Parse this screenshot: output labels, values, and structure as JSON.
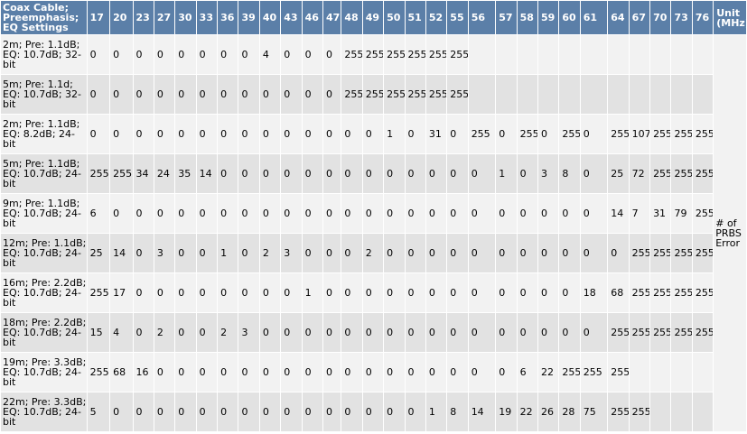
{
  "table": {
    "corner_header": "Coax Cable; Preemphasis; EQ Settings",
    "unit_header": "Unit (MHz)",
    "columns": [
      "17",
      "20",
      "23",
      "27",
      "30",
      "33",
      "36",
      "39",
      "40",
      "43",
      "46",
      "47",
      "48",
      "49",
      "50",
      "51",
      "52",
      "55",
      "56",
      "57",
      "58",
      "59",
      "60",
      "61",
      "64",
      "67",
      "70",
      "73",
      "76"
    ],
    "unit_label": "# of PRBS Error",
    "rows": [
      {
        "setting": "2m; Pre: 1.1dB; EQ: 10.7dB; 32-bit",
        "values": [
          "0",
          "0",
          "0",
          "0",
          "0",
          "0",
          "0",
          "0",
          "4",
          "0",
          "0",
          "0",
          "255",
          "255",
          "255",
          "255",
          "255",
          "255",
          "",
          "",
          "",
          "",
          "",
          "",
          "",
          "",
          "",
          "",
          ""
        ]
      },
      {
        "setting": "5m; Pre: 1.1d; EQ: 10.7dB; 32-bit",
        "values": [
          "0",
          "0",
          "0",
          "0",
          "0",
          "0",
          "0",
          "0",
          "0",
          "0",
          "0",
          "0",
          "255",
          "255",
          "255",
          "255",
          "255",
          "255",
          "",
          "",
          "",
          "",
          "",
          "",
          "",
          "",
          "",
          "",
          ""
        ]
      },
      {
        "setting": "2m; Pre: 1.1dB; EQ: 8.2dB; 24-bit",
        "values": [
          "0",
          "0",
          "0",
          "0",
          "0",
          "0",
          "0",
          "0",
          "0",
          "0",
          "0",
          "0",
          "0",
          "0",
          "1",
          "0",
          "31",
          "0",
          "255",
          "0",
          "255",
          "0",
          "255",
          "0",
          "255",
          "107",
          "255",
          "255",
          "255"
        ]
      },
      {
        "setting": "5m; Pre: 1.1dB; EQ: 10.7dB; 24-bit",
        "values": [
          "255",
          "255",
          "34",
          "24",
          "35",
          "14",
          "0",
          "0",
          "0",
          "0",
          "0",
          "0",
          "0",
          "0",
          "0",
          "0",
          "0",
          "0",
          "0",
          "1",
          "0",
          "3",
          "8",
          "0",
          "25",
          "72",
          "255",
          "255",
          "255"
        ]
      },
      {
        "setting": "9m; Pre: 1.1dB; EQ: 10.7dB; 24-bit",
        "values": [
          "6",
          "0",
          "0",
          "0",
          "0",
          "0",
          "0",
          "0",
          "0",
          "0",
          "0",
          "0",
          "0",
          "0",
          "0",
          "0",
          "0",
          "0",
          "0",
          "0",
          "0",
          "0",
          "0",
          "0",
          "14",
          "7",
          "31",
          "79",
          "255"
        ]
      },
      {
        "setting": "12m; Pre: 1.1dB; EQ: 10.7dB; 24-bit",
        "values": [
          "25",
          "14",
          "0",
          "3",
          "0",
          "0",
          "1",
          "0",
          "2",
          "3",
          "0",
          "0",
          "0",
          "2",
          "0",
          "0",
          "0",
          "0",
          "0",
          "0",
          "0",
          "0",
          "0",
          "0",
          "0",
          "255",
          "255",
          "255",
          "255"
        ]
      },
      {
        "setting": "16m; Pre: 2.2dB; EQ: 10.7dB; 24-bit",
        "values": [
          "255",
          "17",
          "0",
          "0",
          "0",
          "0",
          "0",
          "0",
          "0",
          "0",
          "1",
          "0",
          "0",
          "0",
          "0",
          "0",
          "0",
          "0",
          "0",
          "0",
          "0",
          "0",
          "0",
          "18",
          "68",
          "255",
          "255",
          "255",
          "255"
        ]
      },
      {
        "setting": "18m; Pre: 2.2dB; EQ: 10.7dB; 24-bit",
        "values": [
          "15",
          "4",
          "0",
          "2",
          "0",
          "0",
          "2",
          "3",
          "0",
          "0",
          "0",
          "0",
          "0",
          "0",
          "0",
          "0",
          "0",
          "0",
          "0",
          "0",
          "0",
          "0",
          "0",
          "0",
          "255",
          "255",
          "255",
          "255",
          "255"
        ]
      },
      {
        "setting": "19m; Pre: 3.3dB; EQ: 10.7dB; 24-bit",
        "values": [
          "255",
          "68",
          "16",
          "0",
          "0",
          "0",
          "0",
          "0",
          "0",
          "0",
          "0",
          "0",
          "0",
          "0",
          "0",
          "0",
          "0",
          "0",
          "0",
          "0",
          "6",
          "22",
          "255",
          "255",
          "255",
          "",
          "",
          "",
          ""
        ]
      },
      {
        "setting": "22m; Pre: 3.3dB; EQ: 10.7dB; 24-bit",
        "values": [
          "5",
          "0",
          "0",
          "0",
          "0",
          "0",
          "0",
          "0",
          "0",
          "0",
          "0",
          "0",
          "0",
          "0",
          "0",
          "0",
          "1",
          "8",
          "14",
          "19",
          "22",
          "26",
          "28",
          "75",
          "255",
          "255",
          "",
          "",
          ""
        ]
      }
    ]
  }
}
